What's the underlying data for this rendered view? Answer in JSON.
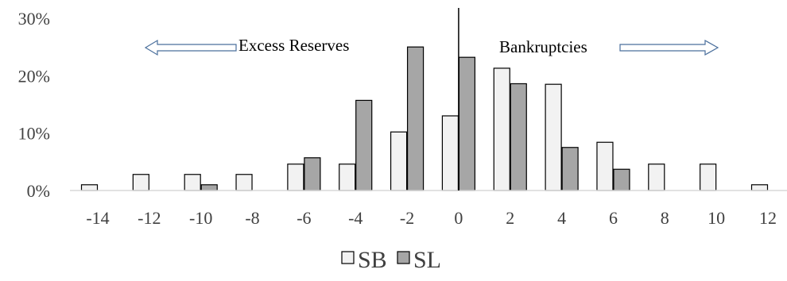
{
  "chart_data": {
    "type": "bar",
    "x": [
      -14,
      -12,
      -10,
      -8,
      -6,
      -4,
      -2,
      0,
      2,
      4,
      6,
      8,
      10,
      12
    ],
    "x_tick_labels": [
      "-14",
      "-12",
      "-10",
      "-8",
      "-6",
      "-4",
      "-2",
      "0",
      "2",
      "4",
      "6",
      "8",
      "10",
      "12"
    ],
    "series": [
      {
        "name": "SB",
        "color": "#f2f2f2",
        "values": [
          1.0,
          2.8,
          2.8,
          2.8,
          4.6,
          4.6,
          10.2,
          13.0,
          21.3,
          18.5,
          8.4,
          4.6,
          4.6,
          1.0
        ]
      },
      {
        "name": "SL",
        "color": "#a6a6a6",
        "values": [
          0,
          0,
          1.0,
          0,
          5.7,
          15.7,
          25.0,
          23.2,
          18.6,
          7.5,
          3.7,
          0,
          0,
          0
        ]
      }
    ],
    "ylim": [
      0,
      30
    ],
    "y_ticks": [
      0,
      10,
      20,
      30
    ],
    "y_tick_labels": [
      "0%",
      "10%",
      "20%",
      "30%"
    ],
    "grid": false,
    "legend_position": "bottom",
    "annotations": {
      "left": "Excess Reserves",
      "right": "Bankruptcies"
    },
    "stroke_color": "#000000"
  }
}
